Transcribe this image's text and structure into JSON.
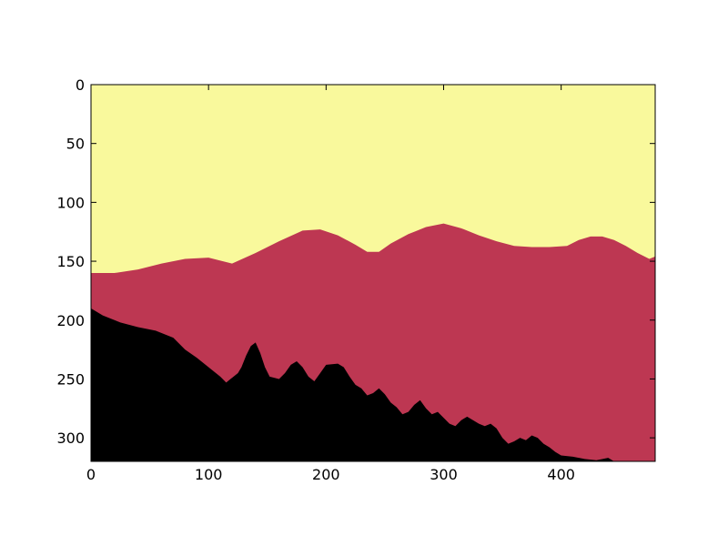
{
  "chart_data": {
    "type": "heatmap",
    "title": "",
    "xlabel": "",
    "ylabel": "",
    "xlim": [
      0,
      480
    ],
    "ylim": [
      320,
      0
    ],
    "y_axis_inverted": true,
    "grid": false,
    "legend": "none",
    "x_ticks": [
      0,
      100,
      200,
      300,
      400
    ],
    "y_ticks": [
      0,
      50,
      100,
      150,
      200,
      250,
      300
    ],
    "classes": [
      {
        "id": "sky",
        "value": 2,
        "color": "#f9f99c"
      },
      {
        "id": "mountains",
        "value": 1,
        "color": "#bd3752"
      },
      {
        "id": "foreground-trees",
        "value": 0,
        "color": "#000000"
      }
    ],
    "boundaries": {
      "sky_mountain": [
        [
          0,
          160
        ],
        [
          20,
          160
        ],
        [
          40,
          157
        ],
        [
          60,
          152
        ],
        [
          80,
          148
        ],
        [
          100,
          147
        ],
        [
          120,
          152
        ],
        [
          140,
          143
        ],
        [
          160,
          133
        ],
        [
          180,
          124
        ],
        [
          195,
          123
        ],
        [
          210,
          128
        ],
        [
          225,
          136
        ],
        [
          235,
          142
        ],
        [
          245,
          142
        ],
        [
          255,
          135
        ],
        [
          270,
          127
        ],
        [
          285,
          121
        ],
        [
          300,
          118
        ],
        [
          315,
          122
        ],
        [
          330,
          128
        ],
        [
          345,
          133
        ],
        [
          360,
          137
        ],
        [
          375,
          138
        ],
        [
          390,
          138
        ],
        [
          405,
          137
        ],
        [
          415,
          132
        ],
        [
          425,
          129
        ],
        [
          435,
          129
        ],
        [
          445,
          132
        ],
        [
          455,
          137
        ],
        [
          465,
          143
        ],
        [
          475,
          148
        ],
        [
          480,
          146
        ]
      ],
      "mountain_foreground": [
        [
          0,
          190
        ],
        [
          10,
          196
        ],
        [
          25,
          202
        ],
        [
          40,
          206
        ],
        [
          55,
          209
        ],
        [
          70,
          215
        ],
        [
          80,
          225
        ],
        [
          90,
          232
        ],
        [
          100,
          240
        ],
        [
          110,
          248
        ],
        [
          115,
          253
        ],
        [
          125,
          245
        ],
        [
          128,
          240
        ],
        [
          132,
          230
        ],
        [
          136,
          222
        ],
        [
          140,
          219
        ],
        [
          144,
          228
        ],
        [
          148,
          240
        ],
        [
          152,
          248
        ],
        [
          160,
          250
        ],
        [
          165,
          245
        ],
        [
          170,
          238
        ],
        [
          175,
          235
        ],
        [
          180,
          240
        ],
        [
          185,
          248
        ],
        [
          190,
          252
        ],
        [
          195,
          245
        ],
        [
          200,
          238
        ],
        [
          210,
          237
        ],
        [
          215,
          240
        ],
        [
          220,
          248
        ],
        [
          225,
          255
        ],
        [
          230,
          258
        ],
        [
          235,
          264
        ],
        [
          240,
          262
        ],
        [
          245,
          258
        ],
        [
          250,
          263
        ],
        [
          255,
          270
        ],
        [
          260,
          274
        ],
        [
          265,
          280
        ],
        [
          270,
          278
        ],
        [
          275,
          272
        ],
        [
          280,
          268
        ],
        [
          285,
          275
        ],
        [
          290,
          280
        ],
        [
          295,
          278
        ],
        [
          300,
          283
        ],
        [
          305,
          288
        ],
        [
          310,
          290
        ],
        [
          315,
          285
        ],
        [
          320,
          282
        ],
        [
          325,
          285
        ],
        [
          330,
          288
        ],
        [
          335,
          290
        ],
        [
          340,
          288
        ],
        [
          345,
          292
        ],
        [
          350,
          300
        ],
        [
          355,
          305
        ],
        [
          360,
          303
        ],
        [
          365,
          300
        ],
        [
          370,
          302
        ],
        [
          375,
          298
        ],
        [
          380,
          300
        ],
        [
          385,
          305
        ],
        [
          390,
          308
        ],
        [
          395,
          312
        ],
        [
          400,
          315
        ],
        [
          410,
          316
        ],
        [
          420,
          318
        ],
        [
          430,
          319
        ],
        [
          440,
          317
        ],
        [
          445,
          320
        ],
        [
          480,
          320
        ]
      ]
    }
  }
}
